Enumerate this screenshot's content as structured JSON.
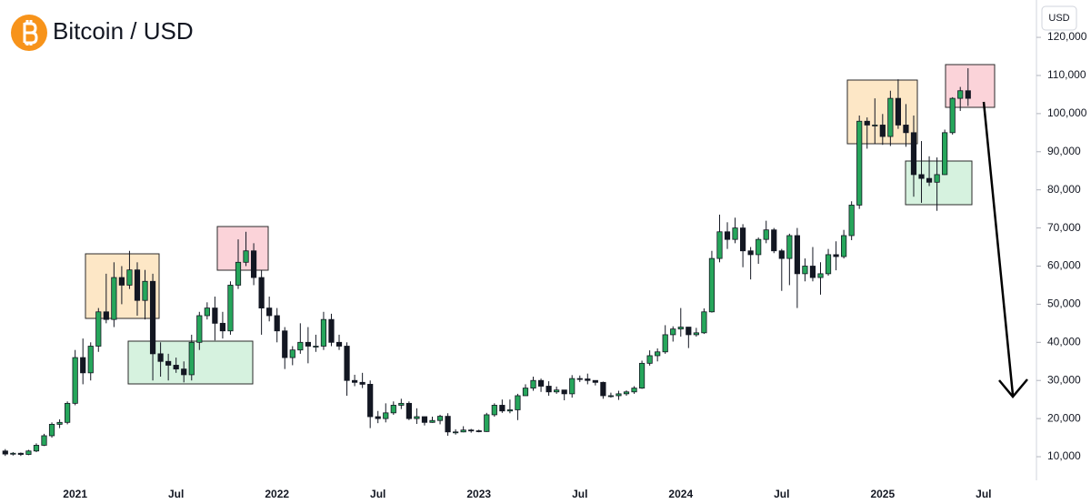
{
  "chart_data": {
    "type": "candlestick",
    "title": "Bitcoin / USD",
    "y_unit": "USD",
    "up_color": "#26a65b",
    "down_color": "#131722",
    "ylim": [
      3800,
      129800
    ],
    "yticks": [
      {
        "value": 10000,
        "label": "10,000"
      },
      {
        "value": 20000,
        "label": "20,000"
      },
      {
        "value": 30000,
        "label": "30,000"
      },
      {
        "value": 40000,
        "label": "40,000"
      },
      {
        "value": 50000,
        "label": "50,000"
      },
      {
        "value": 60000,
        "label": "60,000"
      },
      {
        "value": 70000,
        "label": "70,000"
      },
      {
        "value": 80000,
        "label": "80,000"
      },
      {
        "value": 90000,
        "label": "90,000"
      },
      {
        "value": 100000,
        "label": "100,000"
      },
      {
        "value": 110000,
        "label": "110,000"
      },
      {
        "value": 120000,
        "label": "120,000"
      }
    ],
    "categories": [
      null,
      null,
      null,
      null,
      null,
      null,
      null,
      null,
      null,
      "2021",
      null,
      null,
      null,
      null,
      null,
      null,
      null,
      null,
      null,
      null,
      null,
      null,
      "Jul",
      null,
      null,
      null,
      null,
      null,
      null,
      null,
      null,
      null,
      null,
      null,
      null,
      "2022",
      null,
      null,
      null,
      null,
      null,
      null,
      null,
      null,
      null,
      null,
      null,
      null,
      "Jul",
      null,
      null,
      null,
      null,
      null,
      null,
      null,
      null,
      null,
      null,
      null,
      null,
      "2023",
      null,
      null,
      null,
      null,
      null,
      null,
      null,
      null,
      null,
      null,
      null,
      null,
      "Jul",
      null,
      null,
      null,
      null,
      null,
      null,
      null,
      null,
      null,
      null,
      null,
      null,
      "2024",
      null,
      null,
      null,
      null,
      null,
      null,
      null,
      null,
      null,
      null,
      null,
      null,
      "Jul",
      null,
      null,
      null,
      null,
      null,
      null,
      null,
      null,
      null,
      null,
      null,
      null,
      "2025",
      null,
      null,
      null,
      null,
      null,
      null,
      null,
      null,
      null,
      null,
      null,
      null,
      "Jul"
    ],
    "open": [
      11500,
      10700,
      10900,
      10600,
      11500,
      13000,
      15500,
      18500,
      19000,
      24000,
      36000,
      32000,
      39000,
      48000,
      46000,
      57000,
      55000,
      59000,
      51000,
      56000,
      37000,
      35000,
      34000,
      33000,
      31500,
      40000,
      47000,
      49000,
      45000,
      43000,
      55000,
      61000,
      64000,
      57000,
      49000,
      47000,
      43000,
      36000,
      38000,
      40000,
      39000,
      39000,
      46000,
      40000,
      39000,
      30000,
      29500,
      29000,
      20500,
      20000,
      21500,
      23500,
      24000,
      20000,
      20500,
      19000,
      19500,
      20600,
      16500,
      16500,
      17000,
      16800,
      16600,
      21000,
      23500,
      22000,
      22300,
      26000,
      28000,
      30000,
      28500,
      27000,
      27500,
      26500,
      30500,
      30400,
      30000,
      29500,
      26000,
      26000,
      26500,
      27000,
      28000,
      34500,
      36500,
      37500,
      42000,
      43500,
      44000,
      42000,
      42500,
      48000,
      62000,
      69000,
      67000,
      70000,
      64000,
      63000,
      67000,
      69500,
      64000,
      62000,
      68000,
      58000,
      60000,
      57000,
      58000,
      63000,
      62500,
      68000,
      76000,
      98000,
      97000,
      97000,
      94000,
      104000,
      97000,
      95000,
      84000,
      83000,
      82000,
      84000,
      95000,
      104000,
      106000,
      null,
      null
    ],
    "high": [
      12000,
      11200,
      11100,
      11800,
      13500,
      16000,
      19000,
      19800,
      24500,
      38000,
      41000,
      40000,
      49000,
      58000,
      61000,
      60000,
      64000,
      61000,
      59000,
      58000,
      40000,
      37000,
      36000,
      35000,
      42000,
      48000,
      50500,
      52000,
      48000,
      56000,
      67000,
      69000,
      66000,
      59000,
      52000,
      49000,
      44000,
      39000,
      45000,
      44000,
      42000,
      48000,
      47500,
      42000,
      40000,
      31500,
      32000,
      30000,
      22000,
      24000,
      24500,
      25200,
      24500,
      22700,
      20500,
      20500,
      21000,
      21400,
      17200,
      18000,
      17300,
      17100,
      21500,
      24000,
      25000,
      25000,
      26500,
      29000,
      31000,
      30500,
      29800,
      28400,
      27500,
      31400,
      31300,
      31800,
      30000,
      29700,
      26800,
      27300,
      27400,
      28500,
      35200,
      37900,
      38400,
      44500,
      44200,
      49000,
      44000,
      43800,
      48900,
      64000,
      73500,
      71500,
      72700,
      71000,
      65000,
      67500,
      71900,
      70000,
      64500,
      68500,
      70000,
      62000,
      65000,
      61000,
      64500,
      66500,
      69500,
      77000,
      99500,
      99000,
      104000,
      99900,
      106000,
      109000,
      102500,
      99500,
      92800,
      88800,
      88500,
      95800,
      104300,
      107000,
      111900,
      null,
      null
    ],
    "low": [
      10200,
      10300,
      10200,
      10400,
      11200,
      12800,
      15000,
      17500,
      18500,
      23500,
      29000,
      30000,
      37500,
      45000,
      44000,
      50000,
      54000,
      47000,
      46000,
      30000,
      31000,
      30000,
      32000,
      29500,
      30000,
      38000,
      46000,
      40500,
      41000,
      42000,
      54000,
      60000,
      55000,
      42000,
      45500,
      40000,
      33000,
      34000,
      37000,
      34500,
      37500,
      38000,
      39000,
      38000,
      26000,
      28500,
      28000,
      17500,
      18800,
      19000,
      21000,
      22500,
      19600,
      18600,
      18200,
      18900,
      18500,
      15500,
      15800,
      16400,
      16300,
      16400,
      16500,
      20500,
      21500,
      21400,
      19600,
      26000,
      27300,
      27000,
      26000,
      26500,
      24800,
      25500,
      29600,
      29000,
      28700,
      25200,
      25500,
      24900,
      26000,
      26500,
      27800,
      33900,
      35000,
      37000,
      40200,
      41500,
      38500,
      41500,
      42200,
      47800,
      61000,
      64500,
      66000,
      59700,
      56500,
      60600,
      66000,
      63400,
      53500,
      55000,
      49000,
      56000,
      56000,
      52500,
      57500,
      58900,
      62000,
      66800,
      75000,
      90800,
      92000,
      91800,
      91500,
      96000,
      91300,
      78200,
      76600,
      81000,
      74500,
      83900,
      94500,
      100700,
      102000,
      null,
      null
    ],
    "close": [
      10700,
      10900,
      10600,
      11500,
      13000,
      15500,
      18500,
      19000,
      24000,
      36000,
      32000,
      39000,
      48000,
      46000,
      57000,
      55000,
      59000,
      51000,
      56000,
      37000,
      35000,
      34000,
      33000,
      31500,
      40000,
      47000,
      49000,
      45000,
      43000,
      55000,
      61000,
      64000,
      57000,
      49000,
      47000,
      43000,
      36000,
      38000,
      40000,
      39000,
      39000,
      46000,
      40000,
      39000,
      30000,
      29500,
      29000,
      20500,
      20000,
      21500,
      23500,
      24000,
      20000,
      20500,
      19000,
      19500,
      20600,
      16500,
      16500,
      17000,
      16800,
      16600,
      21000,
      23500,
      22000,
      22300,
      26000,
      28000,
      30000,
      28500,
      27000,
      27500,
      26500,
      30500,
      30400,
      30000,
      29500,
      26000,
      26000,
      26500,
      27000,
      28000,
      34500,
      36500,
      37500,
      42000,
      43500,
      44000,
      42000,
      42500,
      48000,
      62000,
      69000,
      67000,
      70000,
      64000,
      63000,
      67000,
      69500,
      64000,
      62000,
      68000,
      58000,
      60000,
      57000,
      58000,
      63000,
      62500,
      68000,
      76000,
      98000,
      97000,
      97000,
      94000,
      104000,
      97000,
      95000,
      84000,
      83000,
      82000,
      84000,
      95000,
      104000,
      106000,
      104000,
      null,
      null
    ]
  }
}
